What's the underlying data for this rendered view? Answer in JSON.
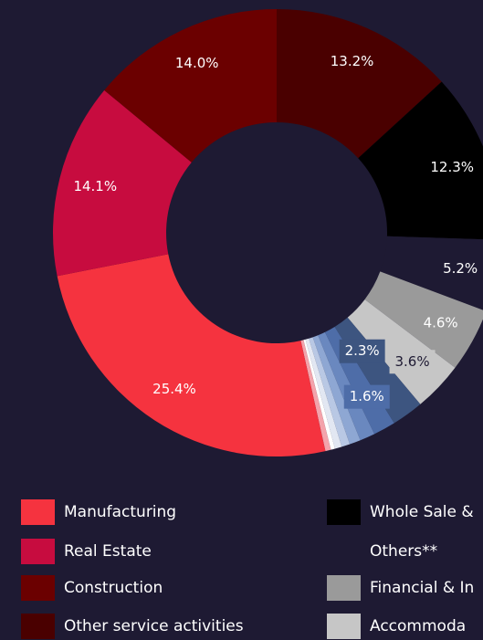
{
  "chart_data": {
    "type": "donut",
    "categories": [
      "Other service activities",
      "Whole Sale &",
      "Others**",
      "Financial & In",
      "Accommoda",
      null,
      null,
      null,
      null,
      null,
      null,
      null,
      null,
      "Manufacturing",
      "Real Estate",
      "Construction"
    ],
    "values": [
      13.2,
      12.3,
      5.2,
      4.6,
      3.6,
      2.3,
      1.6,
      1.1,
      0.8,
      0.6,
      0.5,
      0.3,
      0.4,
      25.4,
      14.1,
      14.0
    ],
    "value_labels": [
      "13.2%",
      "12.3%",
      "5.2%",
      "4.6%",
      "3.6%",
      "2.3%",
      "1.6%",
      null,
      null,
      null,
      null,
      null,
      null,
      "25.4%",
      "14.1%",
      "14.0%"
    ],
    "colors": [
      "#4a0000",
      "#000000",
      "#1e1a33",
      "#9a9a9a",
      "#c6c6c6",
      "#3d5580",
      "#4e6da8",
      "#6a88bf",
      "#8ea7d3",
      "#b9c8e4",
      "#e2e7f2",
      "#ffffff",
      "#f4a3ab",
      "#f5333f",
      "#c70c3f",
      "#6b0000"
    ]
  }
}
